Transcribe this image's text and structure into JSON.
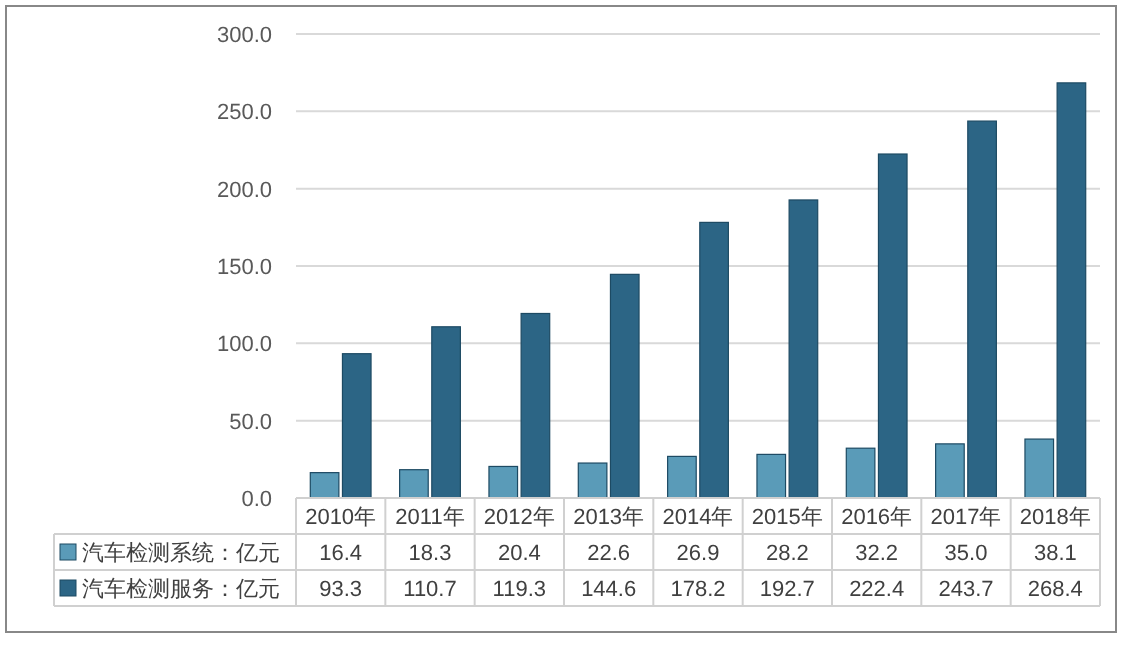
{
  "chart_data": {
    "type": "bar",
    "categories": [
      "2010年",
      "2011年",
      "2012年",
      "2013年",
      "2014年",
      "2015年",
      "2016年",
      "2017年",
      "2018年"
    ],
    "series": [
      {
        "name": "汽车检测系统：亿元",
        "color": "#5a9bb8",
        "values": [
          16.4,
          18.3,
          20.4,
          22.6,
          26.9,
          28.2,
          32.2,
          35.0,
          38.1
        ],
        "value_labels": [
          "16.4",
          "18.3",
          "20.4",
          "22.6",
          "26.9",
          "28.2",
          "32.2",
          "35.0",
          "38.1"
        ]
      },
      {
        "name": "汽车检测服务：亿元",
        "color": "#2c6585",
        "values": [
          93.3,
          110.7,
          119.3,
          144.6,
          178.2,
          192.7,
          222.4,
          243.7,
          268.4
        ],
        "value_labels": [
          "93.3",
          "110.7",
          "119.3",
          "144.6",
          "178.2",
          "192.7",
          "222.4",
          "243.7",
          "268.4"
        ]
      }
    ],
    "ylim": [
      0,
      300
    ],
    "yticks": [
      {
        "value": 0,
        "label": "0.0"
      },
      {
        "value": 50,
        "label": "50.0"
      },
      {
        "value": 100,
        "label": "100.0"
      },
      {
        "value": 150,
        "label": "150.0"
      },
      {
        "value": 200,
        "label": "200.0"
      },
      {
        "value": 250,
        "label": "250.0"
      },
      {
        "value": 300,
        "label": "300.0"
      }
    ],
    "grid": "y",
    "legend": "bottom"
  }
}
